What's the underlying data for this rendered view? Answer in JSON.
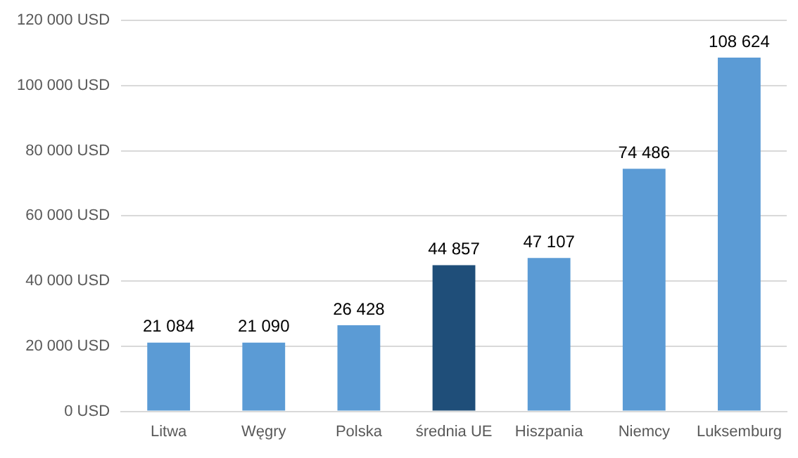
{
  "chart_data": {
    "type": "bar",
    "categories": [
      "Litwa",
      "Węgry",
      "Polska",
      "średnia UE",
      "Hiszpania",
      "Niemcy",
      "Luksemburg"
    ],
    "values": [
      21084,
      21090,
      26428,
      44857,
      47107,
      74486,
      108624
    ],
    "colors": [
      "#5b9bd5",
      "#5b9bd5",
      "#5b9bd5",
      "#1f4e79",
      "#5b9bd5",
      "#5b9bd5",
      "#5b9bd5"
    ],
    "value_labels": [
      "21 084",
      "21 090",
      "26 428",
      "44 857",
      "47 107",
      "74 486",
      "108 624"
    ],
    "ylim": [
      0,
      120000
    ],
    "yticks": [
      {
        "value": 0,
        "label": "0 USD"
      },
      {
        "value": 20000,
        "label": "20 000 USD"
      },
      {
        "value": 40000,
        "label": "40 000 USD"
      },
      {
        "value": 60000,
        "label": "60 000 USD"
      },
      {
        "value": 80000,
        "label": "80 000 USD"
      },
      {
        "value": 100000,
        "label": "100 000 USD"
      },
      {
        "value": 120000,
        "label": "120 000 USD"
      }
    ],
    "grid": "y",
    "legend": false
  }
}
